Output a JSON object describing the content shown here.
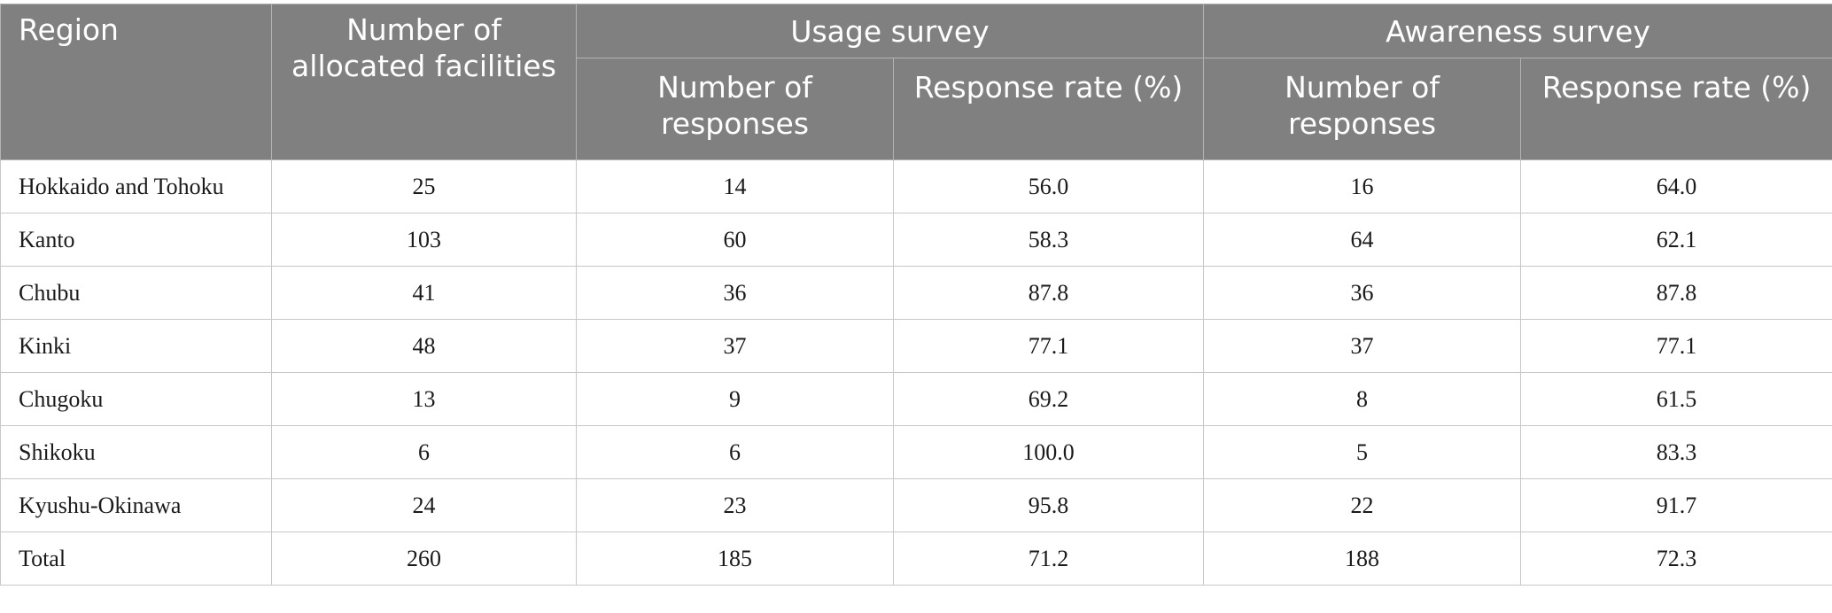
{
  "table": {
    "headers": {
      "region": "Region",
      "allocated": "Number of allocated facilities",
      "usage_group": "Usage survey",
      "awareness_group": "Awareness survey",
      "usage_responses": "Number of responses",
      "usage_rate": "Response rate (%)",
      "awareness_responses": "Number of responses",
      "awareness_rate": "Response rate (%)"
    },
    "rows": [
      {
        "region": "Hokkaido and Tohoku",
        "allocated": "25",
        "usage_responses": "14",
        "usage_rate": "56.0",
        "awareness_responses": "16",
        "awareness_rate": "64.0"
      },
      {
        "region": "Kanto",
        "allocated": "103",
        "usage_responses": "60",
        "usage_rate": "58.3",
        "awareness_responses": "64",
        "awareness_rate": "62.1"
      },
      {
        "region": "Chubu",
        "allocated": "41",
        "usage_responses": "36",
        "usage_rate": "87.8",
        "awareness_responses": "36",
        "awareness_rate": "87.8"
      },
      {
        "region": "Kinki",
        "allocated": "48",
        "usage_responses": "37",
        "usage_rate": "77.1",
        "awareness_responses": "37",
        "awareness_rate": "77.1"
      },
      {
        "region": "Chugoku",
        "allocated": "13",
        "usage_responses": "9",
        "usage_rate": "69.2",
        "awareness_responses": "8",
        "awareness_rate": "61.5"
      },
      {
        "region": "Shikoku",
        "allocated": "6",
        "usage_responses": "6",
        "usage_rate": "100.0",
        "awareness_responses": "5",
        "awareness_rate": "83.3"
      },
      {
        "region": "Kyushu-Okinawa",
        "allocated": "24",
        "usage_responses": "23",
        "usage_rate": "95.8",
        "awareness_responses": "22",
        "awareness_rate": "91.7"
      },
      {
        "region": "Total",
        "allocated": "260",
        "usage_responses": "185",
        "usage_rate": "71.2",
        "awareness_responses": "188",
        "awareness_rate": "72.3"
      }
    ]
  },
  "colors": {
    "header_bg": "#808080",
    "header_text": "#ffffff",
    "grid": "#c8c8c8"
  }
}
